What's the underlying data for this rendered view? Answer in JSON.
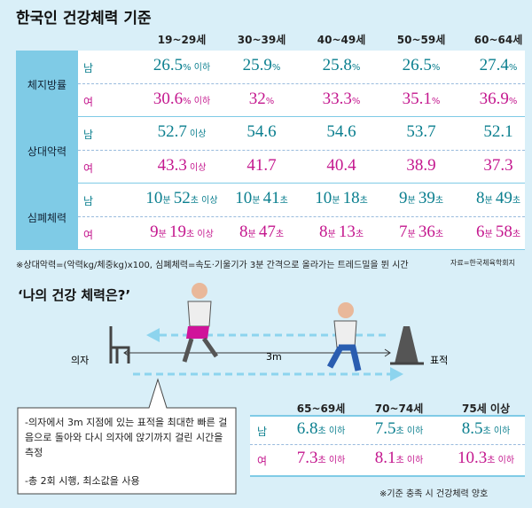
{
  "title": "한국인 건강체력 기준",
  "table": {
    "headers": [
      "19~29세",
      "30~39세",
      "40~49세",
      "50~59세",
      "60~64세"
    ],
    "groups": [
      {
        "name": "체지방률",
        "rows": [
          {
            "sex": "남",
            "cells": [
              "26.5% 이하",
              "25.9%",
              "25.8%",
              "26.5%",
              "27.4%"
            ]
          },
          {
            "sex": "여",
            "cells": [
              "30.6% 이하",
              "32%",
              "33.3%",
              "35.1%",
              "36.9%"
            ]
          }
        ]
      },
      {
        "name": "상대악력",
        "rows": [
          {
            "sex": "남",
            "cells": [
              "52.7 이상",
              "54.6",
              "54.6",
              "53.7",
              "52.1"
            ]
          },
          {
            "sex": "여",
            "cells": [
              "43.3 이상",
              "41.7",
              "40.4",
              "38.9",
              "37.3"
            ]
          }
        ]
      },
      {
        "name": "심폐체력",
        "rows": [
          {
            "sex": "남",
            "cells": [
              "10분 52초 이상",
              "10분 41초",
              "10분 18초",
              "9분 39초",
              "8분 49초"
            ]
          },
          {
            "sex": "여",
            "cells": [
              "9분 19초 이상",
              "8분 47초",
              "8분 13초",
              "7분 36초",
              "6분 58초"
            ]
          }
        ]
      }
    ]
  },
  "footnote": "※상대악력=(악력kg/체중kg)x100, 심폐체력=속도·기울기가 3분 간격으로 올라가는 트레드밀을 뛴 시간",
  "source": "자료=한국체육학회지",
  "section2": {
    "title": "‘나의 건강 체력은?’",
    "chair": "의자",
    "distance": "3m",
    "target": "표적",
    "instructions": [
      "-의자에서 3m 지점에 있는 표적을 최대한 빠른 걸음으로 돌아와 다시 의자에 앉기까지 걸린 시간을 측정",
      "-총 2회 시행, 최소값을 사용"
    ],
    "table": {
      "headers": [
        "65~69세",
        "70~74세",
        "75세 이상"
      ],
      "rows": [
        {
          "sex": "남",
          "cells": [
            "6.8초 이하",
            "7.5초 이하",
            "8.5초 이하"
          ]
        },
        {
          "sex": "여",
          "cells": [
            "7.3초 이하",
            "8.1초 이하",
            "10.3초 이하"
          ]
        }
      ]
    },
    "note": "※기준 충족 시 건강체력 양호"
  }
}
